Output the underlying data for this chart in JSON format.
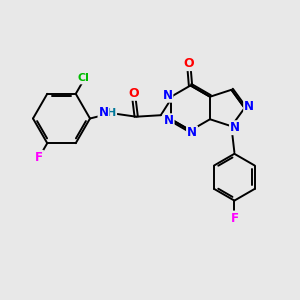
{
  "background_color": "#e8e8e8",
  "bond_color": "#000000",
  "atom_colors": {
    "N": "#0000ff",
    "O": "#ff0000",
    "F": "#ff00ff",
    "Cl": "#00bb00",
    "H": "#007799",
    "C": "#000000"
  },
  "figsize": [
    3.0,
    3.0
  ],
  "dpi": 100
}
